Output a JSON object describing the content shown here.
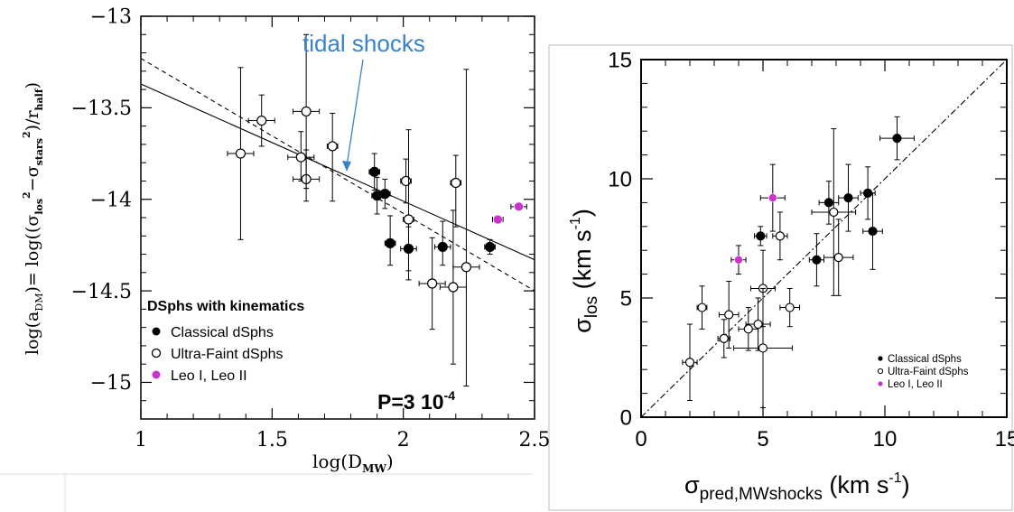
{
  "colors": {
    "ink": "#000000",
    "annotation": "#3a83c8",
    "leo": "#cc33cc"
  },
  "chart_data": [
    {
      "type": "scatter",
      "title": "",
      "xlabel_parts": {
        "base": "log(D",
        "sub": "MW",
        "close": ")"
      },
      "ylabel_parts": {
        "a": "log(a",
        "a_sub": "DM",
        "b": ")= log((σ",
        "b_sub": "los",
        "b_sup": "2",
        "c": "−σ",
        "c_sub": "stars",
        "c_sup": "2",
        "d": ")/r",
        "d_sub": "half",
        "e": ")"
      },
      "xlim": [
        1,
        2.5
      ],
      "ylim": [
        -15.2,
        -13
      ],
      "xticks": [
        "1",
        "1.5",
        "2",
        "2.5"
      ],
      "yticks": [
        "−13",
        "−13.5",
        "−14",
        "−14.5",
        "−15"
      ],
      "annotation": "tidal shocks",
      "pvalue": {
        "text": "P=3 10",
        "exp": "-4"
      },
      "legend": {
        "placement": "bottom-left",
        "title": "DSphs with kinematics",
        "entries": [
          "Classical dSphs",
          "Ultra-Faint dSphs",
          "Leo I, Leo II"
        ]
      },
      "fit_lines": [
        {
          "style": "solid",
          "x": [
            1,
            2.5
          ],
          "y": [
            -13.37,
            -14.33
          ]
        },
        {
          "style": "dashed",
          "x": [
            1,
            2.5
          ],
          "y": [
            -13.23,
            -14.5
          ]
        }
      ],
      "series": [
        {
          "name": "Classical dSphs",
          "points": [
            {
              "x": 1.89,
              "y": -13.85,
              "xerr": 0.02,
              "yerr": [
                0.1,
                0.1
              ]
            },
            {
              "x": 1.9,
              "y": -13.98,
              "xerr": 0.02,
              "yerr": [
                0.1,
                0.1
              ]
            },
            {
              "x": 1.93,
              "y": -13.97,
              "xerr": 0.02,
              "yerr": [
                0.08,
                0.08
              ]
            },
            {
              "x": 1.95,
              "y": -14.24,
              "xerr": 0.02,
              "yerr": [
                0.15,
                0.12
              ]
            },
            {
              "x": 2.02,
              "y": -14.27,
              "xerr": 0.03,
              "yerr": [
                0.12,
                0.12
              ]
            },
            {
              "x": 2.15,
              "y": -14.26,
              "xerr": 0.03,
              "yerr": [
                0.14,
                0.1
              ]
            },
            {
              "x": 2.33,
              "y": -14.26,
              "xerr": 0.02,
              "yerr": [
                0.04,
                0.04
              ]
            }
          ]
        },
        {
          "name": "Ultra-Faint dSphs",
          "points": [
            {
              "x": 1.38,
              "y": -13.75,
              "xerr": 0.05,
              "yerr": [
                0.47,
                0.47
              ]
            },
            {
              "x": 1.46,
              "y": -13.57,
              "xerr": 0.05,
              "yerr": [
                0.14,
                0.14
              ]
            },
            {
              "x": 1.61,
              "y": -13.77,
              "xerr": 0.05,
              "yerr": [
                0.14,
                0.13
              ]
            },
            {
              "x": 1.63,
              "y": -13.89,
              "xerr": 0.05,
              "yerr": [
                0.16,
                0.12
              ]
            },
            {
              "x": 1.63,
              "y": -13.52,
              "xerr": 0.05,
              "yerr": [
                0.42,
                0.42
              ]
            },
            {
              "x": 1.73,
              "y": -13.71,
              "xerr": 0.02,
              "yerr": [
                0.18,
                0.3
              ]
            },
            {
              "x": 2.01,
              "y": -13.9,
              "xerr": 0.02,
              "yerr": [
                0.12,
                0.12
              ]
            },
            {
              "x": 2.02,
              "y": -14.11,
              "xerr": 0.02,
              "yerr": [
                0.49,
                0.33
              ]
            },
            {
              "x": 2.11,
              "y": -14.46,
              "xerr": 0.05,
              "yerr": [
                0.25,
                0.25
              ]
            },
            {
              "x": 2.19,
              "y": -14.48,
              "xerr": 0.05,
              "yerr": [
                0.42,
                0.42
              ]
            },
            {
              "x": 2.2,
              "y": -13.91,
              "xerr": 0.02,
              "yerr": [
                0.15,
                0.24
              ]
            },
            {
              "x": 2.24,
              "y": -14.37,
              "xerr": 0.05,
              "yerr": [
                1.08,
                0.65
              ]
            }
          ]
        },
        {
          "name": "Leo I, Leo II",
          "points": [
            {
              "x": 2.36,
              "y": -14.11,
              "xerr": 0.02,
              "yerr": [
                0,
                0
              ]
            },
            {
              "x": 2.44,
              "y": -14.04,
              "xerr": 0.03,
              "yerr": [
                0,
                0
              ]
            }
          ]
        }
      ]
    },
    {
      "type": "scatter",
      "title": "",
      "xlabel_parts": {
        "base": "σ",
        "sub": "pred,MWshocks",
        "rest": " (km s",
        "sup": "-1",
        "close": ")"
      },
      "ylabel_parts": {
        "base": "σ",
        "sub": "los",
        "rest": " (km s",
        "sup": "-1",
        "close": ")"
      },
      "xlim": [
        0,
        15
      ],
      "ylim": [
        0,
        15
      ],
      "xticks": [
        "0",
        "5",
        "10",
        "15"
      ],
      "yticks": [
        "0",
        "5",
        "10",
        "15"
      ],
      "legend": {
        "placement": "bottom-right",
        "entries": [
          "Classical dSphs",
          "Ultra-Faint dSphs",
          "Leo I, Leo II"
        ]
      },
      "one_to_one": {
        "style": "dash-dot",
        "x": [
          0,
          15
        ],
        "y": [
          0,
          15
        ]
      },
      "series": [
        {
          "name": "Classical dSphs",
          "points": [
            {
              "x": 4.9,
              "y": 7.6,
              "xerr": 0.25,
              "yerr": [
                0.4,
                0.4
              ]
            },
            {
              "x": 7.2,
              "y": 6.6,
              "xerr": 0.3,
              "yerr": [
                1.1,
                1.1
              ]
            },
            {
              "x": 7.7,
              "y": 9.0,
              "xerr": 0.4,
              "yerr": [
                0.9,
                0.9
              ]
            },
            {
              "x": 8.5,
              "y": 9.2,
              "xerr": 0.4,
              "yerr": [
                1.4,
                1.4
              ]
            },
            {
              "x": 9.3,
              "y": 9.4,
              "xerr": 0.3,
              "yerr": [
                1.1,
                1.1
              ]
            },
            {
              "x": 9.5,
              "y": 7.8,
              "xerr": 0.4,
              "yerr": [
                1.6,
                1.6
              ]
            },
            {
              "x": 10.5,
              "y": 11.7,
              "xerr": 0.7,
              "yerr": [
                0.9,
                0.9
              ]
            }
          ]
        },
        {
          "name": "Ultra-Faint dSphs",
          "points": [
            {
              "x": 2.0,
              "y": 2.3,
              "xerr": 0.3,
              "yerr": [
                1.6,
                1.6
              ]
            },
            {
              "x": 2.5,
              "y": 4.6,
              "xerr": 0.2,
              "yerr": [
                0.9,
                0.9
              ]
            },
            {
              "x": 3.4,
              "y": 3.3,
              "xerr": 0.25,
              "yerr": [
                0.8,
                0.8
              ]
            },
            {
              "x": 3.6,
              "y": 4.3,
              "xerr": 0.4,
              "yerr": [
                1.4,
                1.4
              ]
            },
            {
              "x": 4.4,
              "y": 3.7,
              "xerr": 0.4,
              "yerr": [
                0.9,
                0.9
              ]
            },
            {
              "x": 4.8,
              "y": 3.9,
              "xerr": 0.5,
              "yerr": [
                1.1,
                1.1
              ]
            },
            {
              "x": 5.0,
              "y": 5.4,
              "xerr": 0.5,
              "yerr": [
                1.6,
                1.6
              ]
            },
            {
              "x": 5.0,
              "y": 2.9,
              "xerr": 1.2,
              "yerr": [
                2.5,
                2.5
              ]
            },
            {
              "x": 5.7,
              "y": 7.6,
              "xerr": 0.3,
              "yerr": [
                1.0,
                1.0
              ]
            },
            {
              "x": 6.1,
              "y": 4.6,
              "xerr": 0.4,
              "yerr": [
                0.8,
                0.8
              ]
            },
            {
              "x": 7.9,
              "y": 8.6,
              "xerr": 0.9,
              "yerr": [
                3.5,
                3.5
              ]
            },
            {
              "x": 8.1,
              "y": 6.7,
              "xerr": 0.6,
              "yerr": [
                1.6,
                1.6
              ]
            }
          ]
        },
        {
          "name": "Leo I, Leo II",
          "points": [
            {
              "x": 4.0,
              "y": 6.6,
              "xerr": 0.3,
              "yerr": [
                0.6,
                0.6
              ]
            },
            {
              "x": 5.4,
              "y": 9.2,
              "xerr": 0.5,
              "yerr": [
                1.4,
                1.4
              ]
            }
          ]
        }
      ]
    }
  ]
}
